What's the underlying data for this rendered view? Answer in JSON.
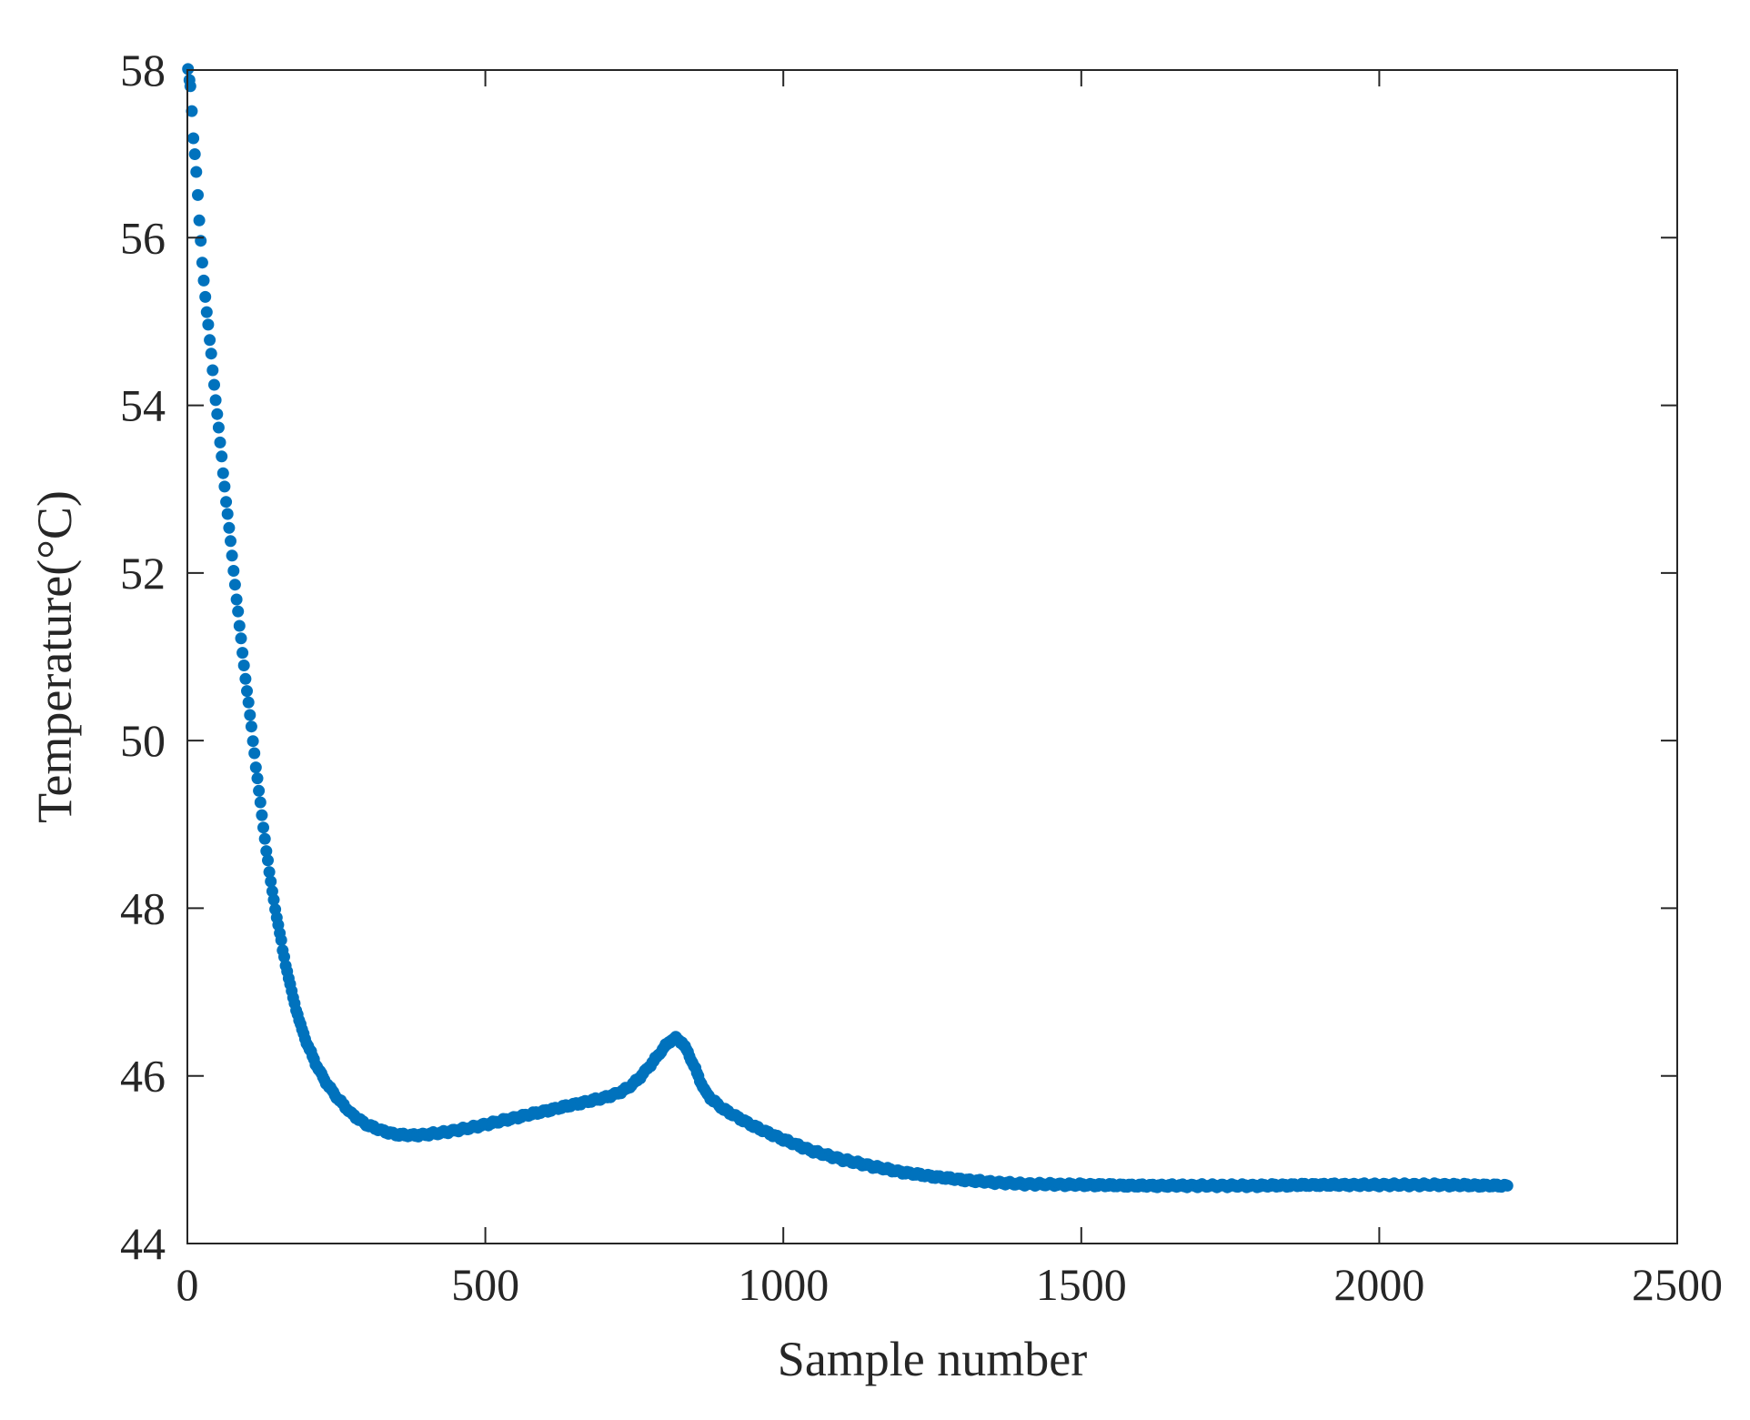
{
  "chart_data": {
    "type": "scatter",
    "xlabel": "Sample number",
    "ylabel": "Temperature(°C)",
    "xlim": [
      0,
      2500
    ],
    "ylim": [
      44,
      58
    ],
    "xticks": [
      0,
      500,
      1000,
      1500,
      2000,
      2500
    ],
    "yticks": [
      44,
      46,
      48,
      50,
      52,
      54,
      56,
      58
    ],
    "xtick_labels": [
      "0",
      "500",
      "1000",
      "1500",
      "2000",
      "2500"
    ],
    "ytick_labels": [
      "44",
      "46",
      "48",
      "50",
      "52",
      "54",
      "56",
      "58"
    ],
    "grid": false,
    "series": [
      {
        "color": "#0072BD",
        "marker": "circle",
        "points": [
          [
            1,
            58.0
          ],
          [
            5,
            57.8
          ],
          [
            10,
            57.2
          ],
          [
            15,
            56.8
          ],
          [
            20,
            56.2
          ],
          [
            25,
            55.7
          ],
          [
            30,
            55.3
          ],
          [
            40,
            54.6
          ],
          [
            50,
            53.9
          ],
          [
            60,
            53.2
          ],
          [
            75,
            52.2
          ],
          [
            90,
            51.2
          ],
          [
            100,
            50.6
          ],
          [
            110,
            50.0
          ],
          [
            125,
            49.1
          ],
          [
            140,
            48.3
          ],
          [
            150,
            47.9
          ],
          [
            160,
            47.5
          ],
          [
            175,
            47.0
          ],
          [
            190,
            46.6
          ],
          [
            200,
            46.4
          ],
          [
            215,
            46.15
          ],
          [
            230,
            45.95
          ],
          [
            250,
            45.75
          ],
          [
            275,
            45.55
          ],
          [
            300,
            45.42
          ],
          [
            325,
            45.35
          ],
          [
            350,
            45.3
          ],
          [
            375,
            45.29
          ],
          [
            400,
            45.3
          ],
          [
            425,
            45.32
          ],
          [
            450,
            45.35
          ],
          [
            475,
            45.38
          ],
          [
            500,
            45.42
          ],
          [
            525,
            45.46
          ],
          [
            550,
            45.5
          ],
          [
            575,
            45.54
          ],
          [
            600,
            45.58
          ],
          [
            625,
            45.62
          ],
          [
            650,
            45.66
          ],
          [
            675,
            45.7
          ],
          [
            700,
            45.74
          ],
          [
            725,
            45.8
          ],
          [
            740,
            45.86
          ],
          [
            755,
            45.95
          ],
          [
            770,
            46.07
          ],
          [
            785,
            46.2
          ],
          [
            800,
            46.34
          ],
          [
            812,
            46.43
          ],
          [
            820,
            46.45
          ],
          [
            830,
            46.4
          ],
          [
            840,
            46.28
          ],
          [
            850,
            46.12
          ],
          [
            860,
            45.95
          ],
          [
            870,
            45.8
          ],
          [
            880,
            45.72
          ],
          [
            900,
            45.6
          ],
          [
            925,
            45.5
          ],
          [
            950,
            45.4
          ],
          [
            975,
            45.32
          ],
          [
            1000,
            45.24
          ],
          [
            1050,
            45.1
          ],
          [
            1100,
            45.0
          ],
          [
            1150,
            44.92
          ],
          [
            1200,
            44.85
          ],
          [
            1250,
            44.8
          ],
          [
            1300,
            44.76
          ],
          [
            1350,
            44.73
          ],
          [
            1400,
            44.71
          ],
          [
            1500,
            44.7
          ],
          [
            1600,
            44.69
          ],
          [
            1700,
            44.69
          ],
          [
            1800,
            44.69
          ],
          [
            1900,
            44.7
          ],
          [
            2000,
            44.7
          ],
          [
            2100,
            44.7
          ],
          [
            2200,
            44.69
          ],
          [
            2215,
            44.69
          ]
        ]
      }
    ]
  }
}
